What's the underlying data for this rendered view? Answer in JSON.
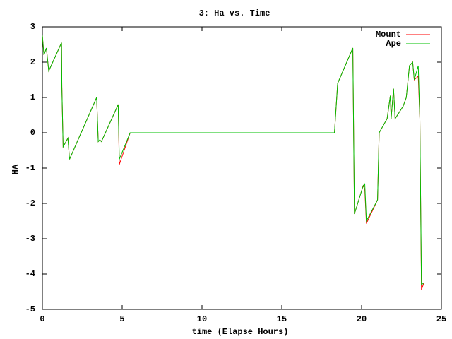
{
  "chart_data": {
    "type": "line",
    "title": "3: Ha vs. Time",
    "x_label": "time (Elapse Hours)",
    "y_label": "HA",
    "x": [
      0,
      0.1,
      0.25,
      0.4,
      1.2,
      1.22,
      1.3,
      1.6,
      1.7,
      3.4,
      3.5,
      3.6,
      3.7,
      4.75,
      4.82,
      5.5,
      18.3,
      18.5,
      19.45,
      19.55,
      20.1,
      20.2,
      20.3,
      21.0,
      21.1,
      21.6,
      21.8,
      21.85,
      22.0,
      22.1,
      22.6,
      22.8,
      23.0,
      23.2,
      23.3,
      23.55,
      23.65,
      23.75,
      23.9
    ],
    "series": [
      {
        "name": "Mount",
        "color": "#ff0000",
        "values": [
          2.75,
          2.2,
          2.4,
          1.75,
          2.55,
          1.3,
          -0.4,
          -0.15,
          -0.75,
          1.0,
          -0.25,
          -0.2,
          -0.25,
          0.8,
          -0.9,
          0,
          0,
          1.4,
          2.4,
          -2.3,
          -1.5,
          -1.6,
          -2.57,
          -1.9,
          0,
          0.4,
          1.05,
          0.4,
          1.25,
          0.4,
          0.75,
          1.0,
          1.9,
          2.0,
          1.5,
          1.6,
          0.4,
          -4.45,
          -4.25
        ]
      },
      {
        "name": "Ape",
        "color": "#00c000",
        "values": [
          2.75,
          2.2,
          2.4,
          1.75,
          2.55,
          1.3,
          -0.4,
          -0.15,
          -0.75,
          1.0,
          -0.25,
          -0.2,
          -0.25,
          0.8,
          -0.75,
          0,
          0,
          1.4,
          2.4,
          -2.3,
          -1.5,
          -1.45,
          -2.5,
          -1.9,
          0,
          0.4,
          1.05,
          0.4,
          1.25,
          0.4,
          0.75,
          1.0,
          1.9,
          2.0,
          1.5,
          1.9,
          0.4,
          -4.3,
          -4.25
        ]
      }
    ],
    "xlim": [
      0,
      25
    ],
    "xticks": [
      0,
      5,
      10,
      15,
      20,
      25
    ],
    "ylim": [
      -5,
      3
    ],
    "yticks": [
      -5,
      -4,
      -3,
      -2,
      -1,
      0,
      1,
      2,
      3
    ],
    "legend": "top-right",
    "grid": false
  }
}
